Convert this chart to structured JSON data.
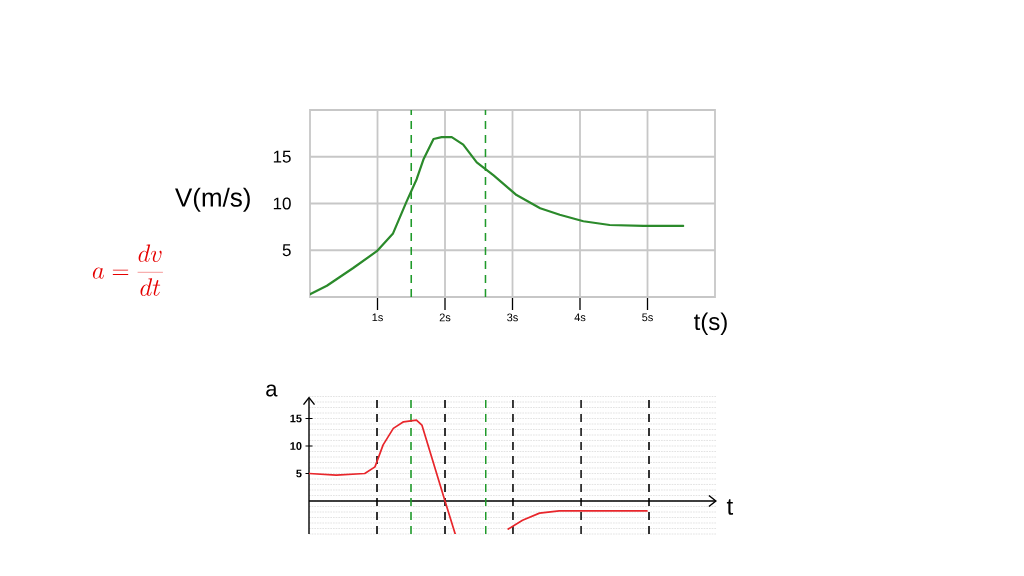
{
  "chart_data": [
    {
      "type": "line",
      "xlabel": "t(s)",
      "ylabel": "V(m/s)",
      "annotations": [
        "a=\\frac{dv}{dt}"
      ],
      "x": [
        0,
        0.25,
        0.64,
        0.99,
        1.23,
        1.43,
        1.58,
        1.68,
        1.83,
        1.95,
        2.1,
        2.27,
        2.47,
        2.72,
        3.06,
        3.41,
        3.7,
        4.05,
        4.44,
        4.94,
        5.53
      ],
      "series": [
        {
          "color": "#2b8a2b",
          "values": [
            0.3,
            1.2,
            3.1,
            4.9,
            6.8,
            10.2,
            12.6,
            14.7,
            16.9,
            17.1,
            17.1,
            16.3,
            14.4,
            13.0,
            10.9,
            9.5,
            8.8,
            8.1,
            7.7,
            7.6,
            7.6
          ]
        }
      ],
      "xlim": [
        0,
        6
      ],
      "ylim": [
        0,
        20
      ],
      "xticks": [
        {
          "value": 1,
          "label": "1s"
        },
        {
          "value": 2,
          "label": "2s"
        },
        {
          "value": 3,
          "label": "3s"
        },
        {
          "value": 4,
          "label": "4s"
        },
        {
          "value": 5,
          "label": "5s"
        }
      ],
      "yticks": [
        5,
        10,
        15
      ],
      "grid": true,
      "marker": "none",
      "line_style": "solid",
      "ref_lines": [
        {
          "axis": "x",
          "value": 1.5,
          "color": "#1f9a2a",
          "line_style": "dashed"
        },
        {
          "axis": "x",
          "value": 2.6,
          "color": "#1f9a2a",
          "line_style": "dashed"
        }
      ]
    },
    {
      "type": "line",
      "xlabel": "t",
      "ylabel": "a",
      "x": [
        0,
        0.4,
        0.82,
        0.97,
        1.09,
        1.24,
        1.39,
        1.58,
        1.66,
        2.0,
        2.15,
        2.5,
        2.93,
        3.14,
        3.39,
        3.68,
        3.97,
        4.97
      ],
      "series": [
        {
          "color": "#e8262b",
          "values": [
            5.0,
            4.7,
            5.0,
            6.2,
            10.2,
            13.2,
            14.4,
            14.7,
            13.8,
            0,
            -6,
            null,
            -5.1,
            -3.5,
            -2.2,
            -1.8,
            -1.8,
            -1.8
          ]
        }
      ],
      "xlim": [
        0,
        6
      ],
      "ylim": [
        -6,
        19
      ],
      "yticks": [
        5,
        10,
        15
      ],
      "tick_labels": "y",
      "grid": true,
      "marker": "none",
      "line_style": "solid",
      "ref_lines": [
        {
          "axis": "x",
          "value": 1,
          "color": "#000000",
          "line_style": "dashed"
        },
        {
          "axis": "x",
          "value": 2,
          "color": "#000000",
          "line_style": "dashed"
        },
        {
          "axis": "x",
          "value": 3,
          "color": "#000000",
          "line_style": "dashed"
        },
        {
          "axis": "x",
          "value": 4,
          "color": "#000000",
          "line_style": "dashed"
        },
        {
          "axis": "x",
          "value": 5,
          "color": "#000000",
          "line_style": "dashed"
        },
        {
          "axis": "x",
          "value": 1.5,
          "color": "#1f9a2a",
          "line_style": "dashed"
        },
        {
          "axis": "x",
          "value": 2.6,
          "color": "#1f9a2a",
          "line_style": "dashed"
        }
      ]
    }
  ]
}
